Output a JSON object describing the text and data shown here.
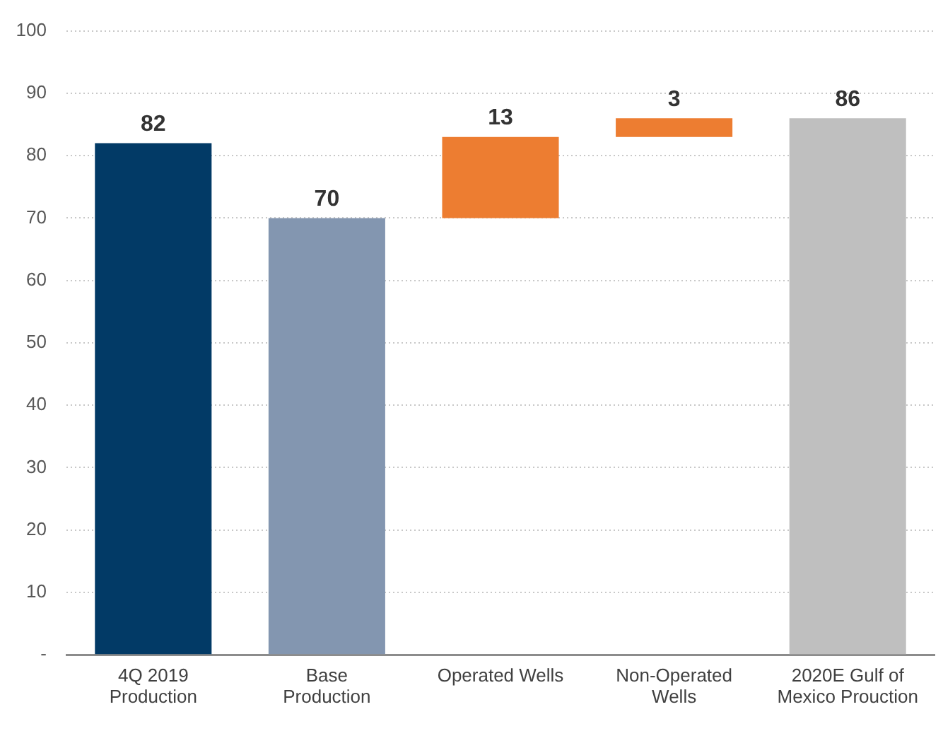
{
  "chart_data": {
    "type": "bar",
    "categories": [
      "4Q 2019 Production",
      "Base Production",
      "Operated Wells",
      "Non-Operated Wells",
      "2020E Gulf of Mexico Prouction"
    ],
    "values": [
      82,
      70,
      13,
      3,
      86
    ],
    "base": [
      0,
      0,
      70,
      83,
      0
    ],
    "colors": [
      "#023a66",
      "#8396b0",
      "#ed7d31",
      "#ed7d31",
      "#bfbfbf"
    ],
    "ylim": [
      0,
      100
    ],
    "yticks": [
      {
        "value": 0,
        "label": "-"
      },
      10,
      20,
      30,
      40,
      50,
      60,
      70,
      80,
      90,
      100
    ],
    "grid": "y",
    "data_labels": true
  }
}
